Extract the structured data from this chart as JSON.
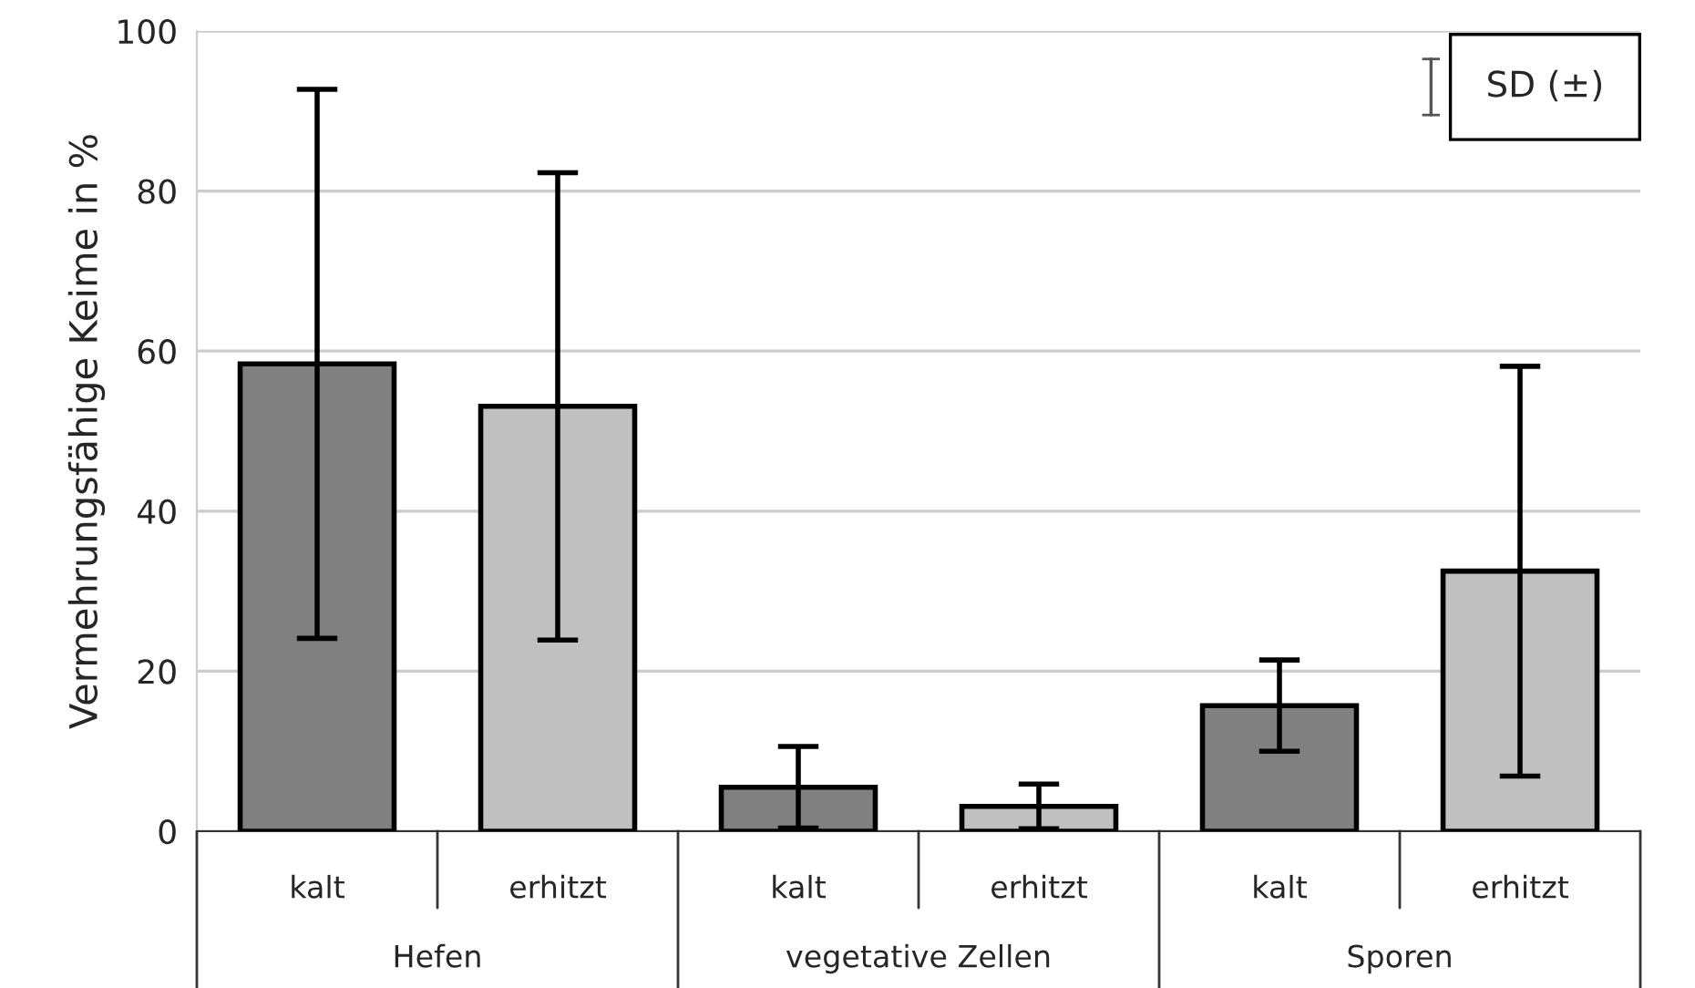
{
  "chart_data": {
    "type": "bar",
    "ylabel": "Vermehrungsfähige Keime in %",
    "categories": [
      "Hefen",
      "vegetative Zellen",
      "Sporen"
    ],
    "series": [
      {
        "name": "kalt",
        "color": "#808080",
        "values": [
          58.4,
          5.5,
          15.7
        ],
        "errors": [
          34.3,
          5.1,
          5.7
        ]
      },
      {
        "name": "erhitzt",
        "color": "#c0c0c0",
        "values": [
          53.1,
          3.1,
          32.5
        ],
        "errors": [
          29.2,
          2.8,
          25.6
        ]
      }
    ],
    "ylim": [
      0,
      100
    ],
    "yticks": [
      0,
      20,
      40,
      60,
      80,
      100
    ],
    "grid": "y",
    "legend": false,
    "annotations": [
      "SD (±)"
    ]
  }
}
